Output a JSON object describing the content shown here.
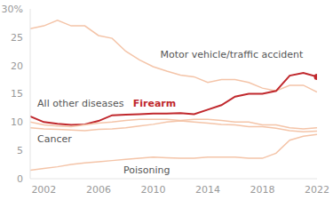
{
  "chart_data": {
    "type": "line",
    "x": [
      2001,
      2002,
      2003,
      2004,
      2005,
      2006,
      2007,
      2008,
      2009,
      2010,
      2011,
      2012,
      2013,
      2014,
      2015,
      2016,
      2017,
      2018,
      2019,
      2020,
      2021,
      2022
    ],
    "series": [
      {
        "name": "Motor vehicle/traffic accident",
        "color": "#f4c4a8",
        "values": [
          26.5,
          27,
          28,
          27,
          27,
          25.3,
          24.8,
          22.5,
          21,
          19.8,
          19,
          18.3,
          18,
          17,
          17.5,
          17.5,
          17,
          16,
          15.5,
          16.5,
          16.5,
          15.3
        ]
      },
      {
        "name": "Firearm",
        "color": "#c0282d",
        "marker": "end",
        "values": [
          11,
          10,
          9.7,
          9.5,
          9.6,
          10.2,
          11.2,
          11.3,
          11.4,
          11.5,
          11.5,
          11.6,
          11.4,
          12.2,
          13,
          14.5,
          15,
          15,
          15.5,
          18.2,
          18.7,
          18
        ]
      },
      {
        "name": "All other diseases",
        "color": "#f4c4a8",
        "values": [
          10,
          9.5,
          9.3,
          9.2,
          9.5,
          9.8,
          10,
          10.3,
          10.5,
          10.5,
          10.5,
          10.3,
          10.5,
          10.5,
          10.3,
          10,
          10,
          9.5,
          9.5,
          9,
          8.8,
          9
        ]
      },
      {
        "name": "Cancer",
        "color": "#f4c4a8",
        "values": [
          9,
          8.8,
          8.7,
          8.6,
          8.5,
          8.7,
          8.8,
          9,
          9.3,
          9.6,
          10,
          10.2,
          10,
          9.8,
          9.6,
          9.5,
          9.2,
          9.2,
          8.9,
          8.5,
          8.3,
          8.4
        ]
      },
      {
        "name": "Poisoning",
        "color": "#f4c4a8",
        "values": [
          1.5,
          1.8,
          2.1,
          2.5,
          2.8,
          3,
          3.2,
          3.4,
          3.6,
          3.8,
          3.7,
          3.6,
          3.6,
          3.8,
          3.8,
          3.8,
          3.6,
          3.6,
          4.5,
          6.8,
          7.5,
          7.8
        ]
      }
    ],
    "xlim": [
      2001,
      2022
    ],
    "xticks": [
      2002,
      2006,
      2010,
      2014,
      2018,
      2022
    ],
    "ylim": [
      0,
      30
    ],
    "yticks": [
      0,
      5,
      10,
      15,
      20,
      25,
      {
        "value": 30,
        "label": "30%"
      }
    ],
    "grid": false
  }
}
